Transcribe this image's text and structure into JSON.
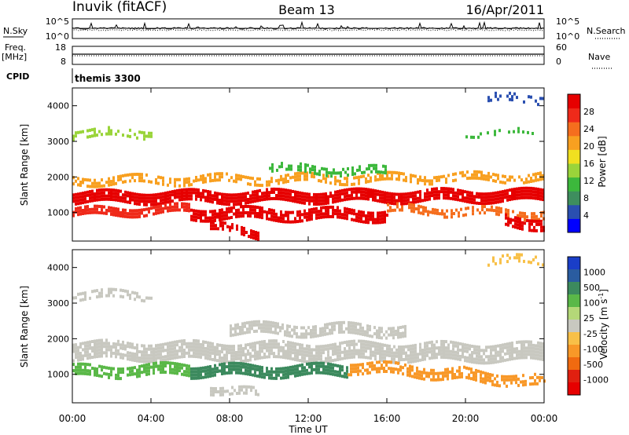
{
  "header": {
    "station": "Inuvik (fitACF)",
    "beam": "Beam 13",
    "date": "16/Apr/2011"
  },
  "sky_panel": {
    "left_label": "N.Sky",
    "right_label": "N.Search",
    "left_ticks": [
      "10^5",
      "10^0"
    ],
    "right_ticks": [
      "10^5",
      "10^0"
    ]
  },
  "freq_panel": {
    "left_label": "Freq.",
    "left_unit": "[MHz]",
    "right_label": "Nave",
    "left_ticks": [
      "18",
      "8"
    ],
    "right_ticks": [
      "60",
      "0"
    ]
  },
  "cpid": {
    "label": "CPID",
    "value": "themis 3300"
  },
  "x_axis": {
    "label": "Time UT",
    "ticks": [
      "00:00",
      "04:00",
      "08:00",
      "12:00",
      "16:00",
      "20:00",
      "00:00"
    ]
  },
  "chart_data": [
    {
      "type": "heatmap",
      "title": "",
      "xlabel": "Time UT",
      "ylabel": "Slant Range [km]",
      "xlim": [
        0,
        24
      ],
      "ylim": [
        200,
        4500
      ],
      "y_ticks": [
        "1000",
        "2000",
        "3000",
        "4000"
      ],
      "colorbar": {
        "label": "Power [dB]",
        "ticks": [
          "4",
          "8",
          "12",
          "16",
          "20",
          "24",
          "28"
        ],
        "colors": [
          "#0000ff",
          "#2a4fb0",
          "#3e8e5e",
          "#3cb83c",
          "#9ad43a",
          "#f0e020",
          "#f8a020",
          "#f56e1e",
          "#ef2a1a",
          "#e60000"
        ]
      },
      "bands": [
        {
          "t": [
            0,
            24
          ],
          "r_center": [
            1450,
            1500
          ],
          "r_width": 300,
          "color": "#e60000",
          "density": 0.9
        },
        {
          "t": [
            0,
            6
          ],
          "r_center": [
            1000,
            1100
          ],
          "r_width": 250,
          "color": "#ef2a1a",
          "density": 0.85
        },
        {
          "t": [
            6,
            16
          ],
          "r_center": [
            1000,
            950
          ],
          "r_width": 300,
          "color": "#e60000",
          "density": 0.8
        },
        {
          "t": [
            16,
            24
          ],
          "r_center": [
            1100,
            950
          ],
          "r_width": 250,
          "color": "#f56e1e",
          "density": 0.6
        },
        {
          "t": [
            0,
            24
          ],
          "r_center": [
            1900,
            2000
          ],
          "r_width": 250,
          "color": "#f8a020",
          "density": 0.55
        },
        {
          "t": [
            10,
            16
          ],
          "r_center": [
            2250,
            2150
          ],
          "r_width": 250,
          "color": "#3cb83c",
          "density": 0.55
        },
        {
          "t": [
            0,
            4
          ],
          "r_center": [
            3250,
            3250
          ],
          "r_width": 200,
          "color": "#9ad43a",
          "density": 0.4
        },
        {
          "t": [
            20,
            23.5
          ],
          "r_center": [
            3250,
            3250
          ],
          "r_width": 150,
          "color": "#3cb83c",
          "density": 0.3
        },
        {
          "t": [
            21,
            24
          ],
          "r_center": [
            4200,
            4200
          ],
          "r_width": 250,
          "color": "#2a4fb0",
          "density": 0.35
        },
        {
          "t": [
            22,
            24
          ],
          "r_center": [
            800,
            700
          ],
          "r_width": 300,
          "color": "#e60000",
          "density": 0.7
        },
        {
          "t": [
            7,
            9.5
          ],
          "r_center": [
            600,
            400
          ],
          "r_width": 250,
          "color": "#e60000",
          "density": 0.7
        }
      ]
    },
    {
      "type": "heatmap",
      "title": "",
      "xlabel": "Time UT",
      "ylabel": "Slant Range [km]",
      "xlim": [
        0,
        24
      ],
      "ylim": [
        200,
        4500
      ],
      "y_ticks": [
        "1000",
        "2000",
        "3000",
        "4000"
      ],
      "colorbar": {
        "label": "Velocity [m s^-1]",
        "ticks": [
          "1000",
          "500",
          "100",
          "25",
          "-25",
          "-100",
          "-500",
          "-1000"
        ],
        "colors": [
          "#1a3ec8",
          "#2a5ca0",
          "#3c8a5e",
          "#5ab848",
          "#b4d878",
          "#c8c8c0",
          "#f8c048",
          "#f89828",
          "#f06a10",
          "#e02010",
          "#e60000"
        ]
      },
      "bands": [
        {
          "t": [
            0,
            24
          ],
          "r_center": [
            1700,
            1650
          ],
          "r_width": 450,
          "color": "#c8c8c0",
          "density": 0.85
        },
        {
          "t": [
            8,
            17
          ],
          "r_center": [
            2300,
            2250
          ],
          "r_width": 300,
          "color": "#c8c8c0",
          "density": 0.75
        },
        {
          "t": [
            0,
            6
          ],
          "r_center": [
            1100,
            1150
          ],
          "r_width": 300,
          "color": "#5ab848",
          "density": 0.7
        },
        {
          "t": [
            6,
            14
          ],
          "r_center": [
            1100,
            1100
          ],
          "r_width": 350,
          "color": "#3c8a5e",
          "density": 0.85
        },
        {
          "t": [
            14,
            20
          ],
          "r_center": [
            1200,
            1000
          ],
          "r_width": 350,
          "color": "#f89828",
          "density": 0.7
        },
        {
          "t": [
            20,
            24
          ],
          "r_center": [
            1000,
            800
          ],
          "r_width": 300,
          "color": "#f89828",
          "density": 0.6
        },
        {
          "t": [
            0,
            4
          ],
          "r_center": [
            3250,
            3250
          ],
          "r_width": 200,
          "color": "#c8c8c0",
          "density": 0.5
        },
        {
          "t": [
            21,
            24
          ],
          "r_center": [
            4200,
            4200
          ],
          "r_width": 250,
          "color": "#f8c048",
          "density": 0.3
        },
        {
          "t": [
            7,
            9.5
          ],
          "r_center": [
            600,
            450
          ],
          "r_width": 250,
          "color": "#c8c8c0",
          "density": 0.6
        }
      ]
    }
  ]
}
